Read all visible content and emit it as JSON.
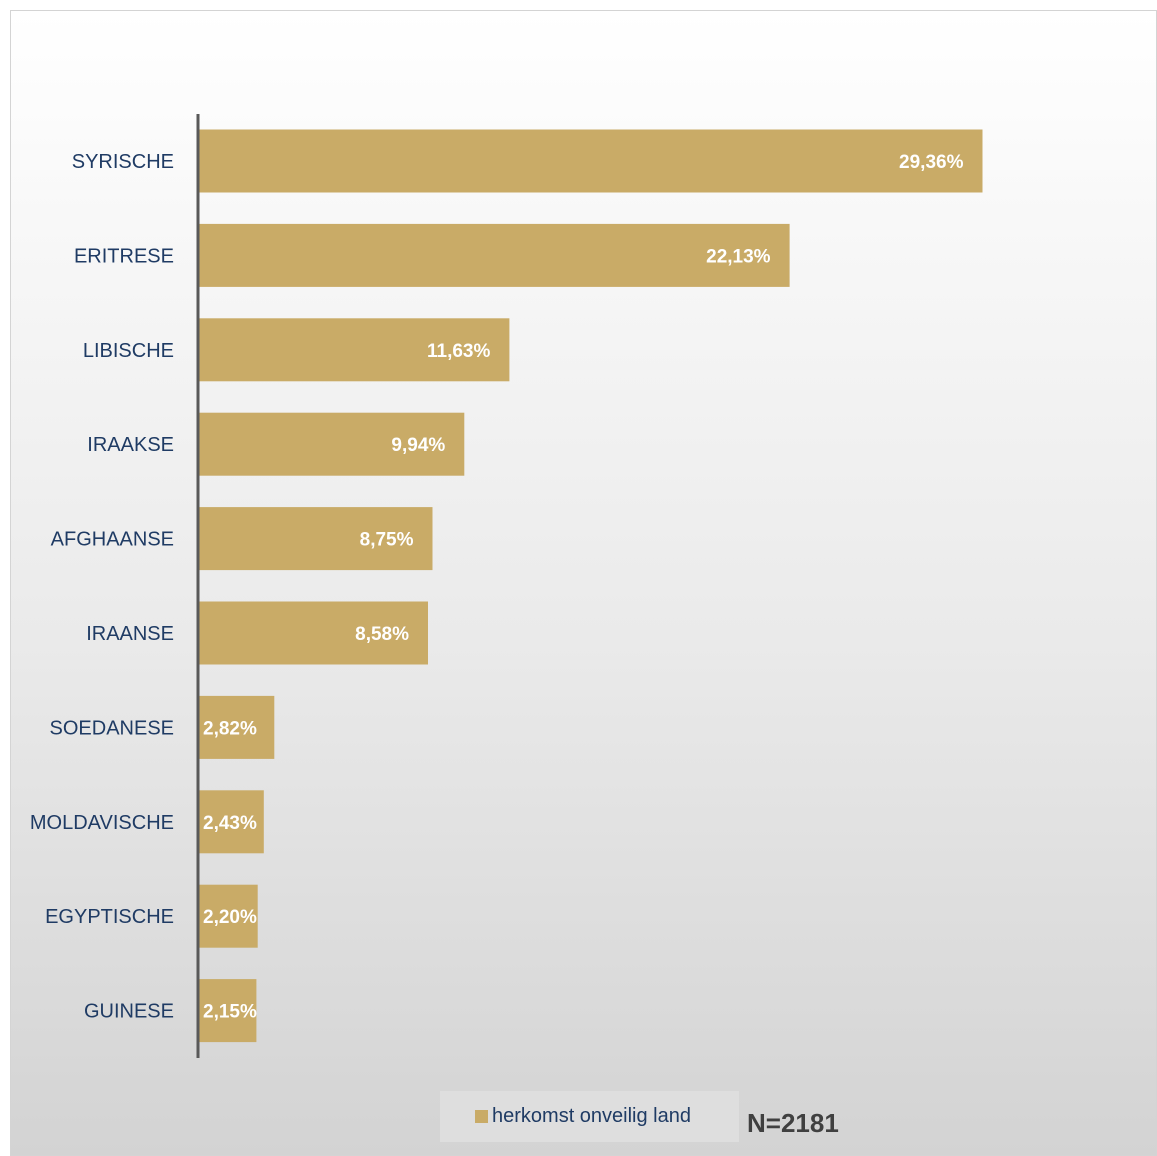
{
  "chart_data": {
    "type": "bar",
    "orientation": "horizontal",
    "categories": [
      "SYRISCHE",
      "ERITRESE",
      "LIBISCHE",
      "IRAAKSE",
      "AFGHAANSE",
      "IRAANSE",
      "SOEDANESE",
      "MOLDAVISCHE",
      "EGYPTISCHE",
      "GUINESE"
    ],
    "series": [
      {
        "name": "herkomst onveilig land",
        "values": [
          29.36,
          22.13,
          11.63,
          9.94,
          8.75,
          8.58,
          2.82,
          2.43,
          2.2,
          2.15
        ],
        "value_labels": [
          "29,36%",
          "22,13%",
          "11,63%",
          "9,94%",
          "8,75%",
          "8,58%",
          "2,82%",
          "2,43%",
          "2,20%",
          "2,15%"
        ],
        "color": "#c9ab67"
      }
    ],
    "xlim": [
      0,
      35
    ],
    "grid": false,
    "legend": "bottom",
    "annotation": "N=2181",
    "title": "",
    "xlabel": "",
    "ylabel": ""
  },
  "colors": {
    "bar": "#c9ab67",
    "axis": "#595959",
    "category_text": "#1f3b64",
    "value_text": "#ffffff"
  }
}
